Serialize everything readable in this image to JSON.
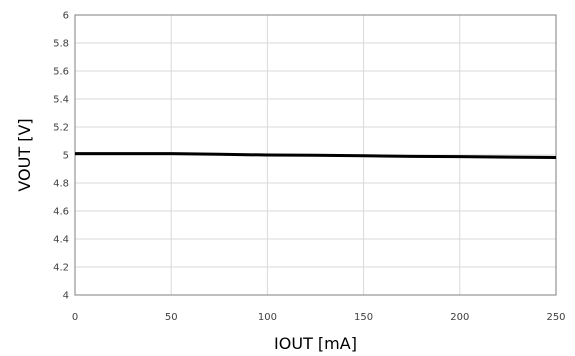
{
  "chart_data": {
    "type": "line",
    "xlabel": "IOUT [mA]",
    "ylabel": "VOUT [V]",
    "xlim": [
      0,
      250
    ],
    "ylim": [
      4,
      6
    ],
    "x_ticks": [
      0,
      50,
      100,
      150,
      200,
      250
    ],
    "y_ticks": [
      4,
      4.2,
      4.4,
      4.6,
      4.8,
      5,
      5.2,
      5.4,
      5.6,
      5.8,
      6
    ],
    "x_tick_labels": [
      "0",
      "50",
      "100",
      "150",
      "200",
      "250"
    ],
    "y_tick_labels": [
      "4",
      "4.2",
      "4.4",
      "4.6",
      "4.8",
      "5",
      "5.2",
      "5.4",
      "5.6",
      "5.8",
      "6"
    ],
    "grid": true,
    "series": [
      {
        "color": "#000000",
        "x": [
          0,
          25,
          50,
          75,
          100,
          125,
          150,
          175,
          200,
          225,
          250
        ],
        "y": [
          5.01,
          5.01,
          5.01,
          5.005,
          5.0,
          4.998,
          4.995,
          4.99,
          4.988,
          4.985,
          4.982
        ]
      }
    ]
  }
}
